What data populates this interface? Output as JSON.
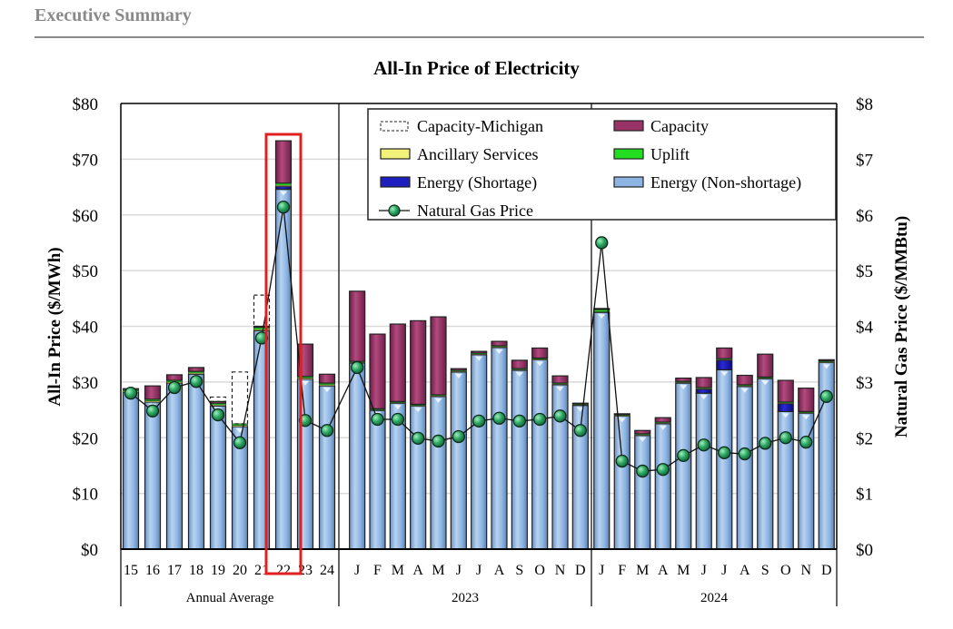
{
  "header": {
    "section_title": "Executive Summary"
  },
  "chart_data": {
    "type": "bar",
    "stacked": true,
    "title": "All-In Price of Electricity",
    "ylabel": "All-In Price ($/MWh)",
    "y2label": "Natural Gas Price ($/MMBtu)",
    "ylim": [
      0,
      80
    ],
    "y2lim": [
      0,
      8
    ],
    "yticks": [
      "$0",
      "$10",
      "$20",
      "$30",
      "$40",
      "$50",
      "$60",
      "$70",
      "$80"
    ],
    "y2ticks": [
      "$0",
      "$1",
      "$2",
      "$3",
      "$4",
      "$5",
      "$6",
      "$7",
      "$8"
    ],
    "grid": true,
    "legend_position": "top-right",
    "highlight": {
      "category_index": 7,
      "color": "#e02020"
    },
    "groups": [
      {
        "label": "Annual Average",
        "start": 0,
        "end": 9
      },
      {
        "label": "2023",
        "start": 10,
        "end": 21
      },
      {
        "label": "2024",
        "start": 22,
        "end": 33
      }
    ],
    "categories": [
      "15",
      "16",
      "17",
      "18",
      "19",
      "20",
      "21",
      "22",
      "23",
      "24",
      "J",
      "F",
      "M",
      "A",
      "M",
      "J",
      "J",
      "A",
      "S",
      "O",
      "N",
      "D",
      "J",
      "F",
      "M",
      "A",
      "M",
      "J",
      "J",
      "A",
      "S",
      "O",
      "N",
      "D"
    ],
    "series": [
      {
        "name": "Energy (Non-shortage)",
        "color": "#8db4e2",
        "kind": "bar",
        "values": [
          28.2,
          26.4,
          29.8,
          31.4,
          25.7,
          22.0,
          39.2,
          64.6,
          30.5,
          29.3,
          33.4,
          24.9,
          26.2,
          25.7,
          27.4,
          31.8,
          34.9,
          36.2,
          32.1,
          34.0,
          29.5,
          25.8,
          42.5,
          23.9,
          20.4,
          22.5,
          29.8,
          28.0,
          32.2,
          29.2,
          30.6,
          24.7,
          24.4,
          33.5
        ]
      },
      {
        "name": "Energy (Shortage)",
        "color": "#1f1fbf",
        "kind": "bar",
        "values": [
          0,
          0,
          0,
          0,
          0,
          0,
          0,
          0.5,
          0,
          0,
          0,
          0,
          0,
          0,
          0,
          0,
          0,
          0,
          0,
          0,
          0,
          0,
          0,
          0,
          0,
          0,
          0,
          0.7,
          1.7,
          0,
          0,
          1.4,
          0,
          0
        ]
      },
      {
        "name": "Ancillary Services",
        "color": "#f2f27a",
        "kind": "bar",
        "values": [
          0.2,
          0.2,
          0.2,
          0.2,
          0.2,
          0.2,
          0.2,
          0.2,
          0.2,
          0.2,
          0.1,
          0.1,
          0.1,
          0.1,
          0.1,
          0.1,
          0.1,
          0.1,
          0.1,
          0.1,
          0.1,
          0.1,
          0.1,
          0.1,
          0.1,
          0.1,
          0.1,
          0.1,
          0.1,
          0.1,
          0.1,
          0.1,
          0.1,
          0.1
        ]
      },
      {
        "name": "Uplift",
        "color": "#22dd22",
        "kind": "bar",
        "values": [
          0.3,
          0.3,
          0.3,
          0.3,
          0.3,
          0.3,
          0.4,
          0.4,
          0.3,
          0.3,
          0.2,
          0.2,
          0.2,
          0.2,
          0.2,
          0.2,
          0.2,
          0.2,
          0.2,
          0.2,
          0.2,
          0.2,
          0.4,
          0.2,
          0.2,
          0.2,
          0.2,
          0.2,
          0.2,
          0.2,
          0.2,
          0.2,
          0.2,
          0.2
        ]
      },
      {
        "name": "Capacity",
        "color": "#993366",
        "kind": "bar",
        "values": [
          0.1,
          2.4,
          1.0,
          0.7,
          0.3,
          0.0,
          0.2,
          7.6,
          5.8,
          1.6,
          12.6,
          13.4,
          13.9,
          15.0,
          14.0,
          0.3,
          0.3,
          0.8,
          1.5,
          1.8,
          1.3,
          0.1,
          0.2,
          0.1,
          0.6,
          0.8,
          0.6,
          1.8,
          1.9,
          1.7,
          4.1,
          3.9,
          4.2,
          0.2
        ]
      },
      {
        "name": "Capacity-Michigan",
        "color": "none",
        "kind": "dashed-bar",
        "values": [
          0,
          0,
          0,
          0,
          0.8,
          9.3,
          5.6,
          0,
          0,
          0,
          0,
          0,
          0,
          0,
          0,
          0,
          0,
          0,
          0,
          0,
          0,
          0,
          0,
          0,
          0,
          0,
          0,
          0,
          0,
          0,
          0,
          0,
          0,
          0
        ]
      },
      {
        "name": "Natural Gas Price",
        "color": "#2ea862",
        "kind": "line",
        "axis": "right",
        "values": [
          2.8,
          2.48,
          2.9,
          3.01,
          2.41,
          1.91,
          3.79,
          6.14,
          2.31,
          2.13,
          3.26,
          2.33,
          2.33,
          1.99,
          1.94,
          2.02,
          2.3,
          2.35,
          2.3,
          2.33,
          2.39,
          2.13,
          5.5,
          1.58,
          1.4,
          1.43,
          1.68,
          1.87,
          1.73,
          1.71,
          1.9,
          2.0,
          1.92,
          2.74
        ]
      }
    ],
    "legend": [
      {
        "label": "Capacity-Michigan",
        "swatch": "dashed"
      },
      {
        "label": "Capacity",
        "swatch": "#993366"
      },
      {
        "label": "Ancillary Services",
        "swatch": "#f2f27a"
      },
      {
        "label": "Uplift",
        "swatch": "#22dd22"
      },
      {
        "label": "Energy (Shortage)",
        "swatch": "#1f1fbf"
      },
      {
        "label": "Energy (Non-shortage)",
        "swatch": "#8db4e2"
      },
      {
        "label": "Natural Gas Price",
        "swatch": "line-marker"
      }
    ]
  }
}
